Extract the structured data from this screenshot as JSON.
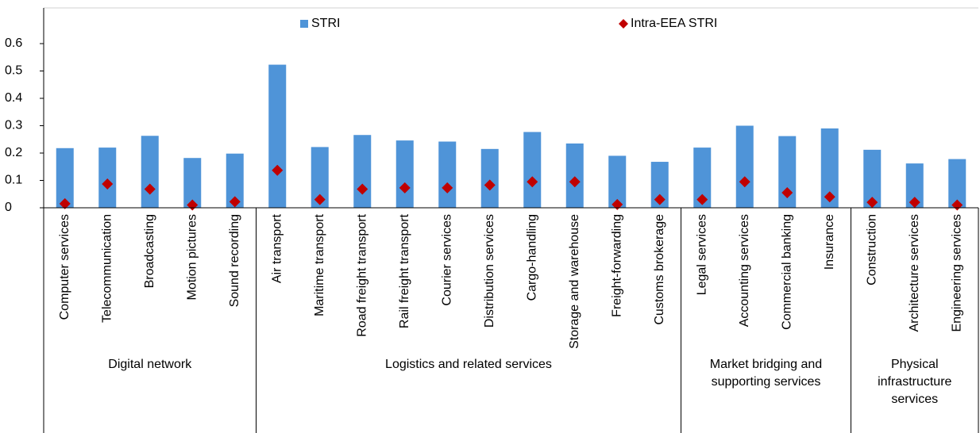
{
  "chart_data": {
    "type": "bar",
    "groups": [
      {
        "label": "Digital network",
        "categories": [
          "Computer services",
          "Telecommunication",
          "Broadcasting",
          "Motion pictures",
          "Sound recording"
        ]
      },
      {
        "label": "Logistics and related services",
        "categories": [
          "Air transport",
          "Maritime transport",
          "Road freight transport",
          "Rail freight transport",
          "Courier services",
          "Distribution services",
          "Cargo-handling",
          "Storage and warehouse",
          "Freight-forwarding",
          "Customs brokerage"
        ]
      },
      {
        "label": "Market bridging and supporting services",
        "categories": [
          "Legal services",
          "Accounting services",
          "Commercial banking",
          "Insurance"
        ]
      },
      {
        "label": "Physical infrastructure services",
        "categories": [
          "Construction",
          "Architecture services",
          "Engineering services"
        ]
      }
    ],
    "series": [
      {
        "name": "STRI",
        "color": "#4f94d8",
        "marker": "bar",
        "values": [
          0.218,
          0.22,
          0.263,
          0.182,
          0.198,
          0.523,
          0.222,
          0.266,
          0.246,
          0.242,
          0.215,
          0.277,
          0.235,
          0.19,
          0.168,
          0.22,
          0.3,
          0.262,
          0.29,
          0.212,
          0.162,
          0.178
        ]
      },
      {
        "name": "Intra-EEA STRI",
        "color": "#c00000",
        "marker": "diamond",
        "values": [
          0.015,
          0.087,
          0.068,
          0.01,
          0.022,
          0.137,
          0.03,
          0.068,
          0.073,
          0.073,
          0.083,
          0.095,
          0.095,
          0.012,
          0.03,
          0.03,
          0.095,
          0.055,
          0.04,
          0.02,
          0.02,
          0.01
        ]
      }
    ],
    "ylim": [
      0,
      0.6
    ],
    "yticks": [
      0,
      0.1,
      0.2,
      0.3,
      0.4,
      0.5,
      0.6
    ]
  }
}
